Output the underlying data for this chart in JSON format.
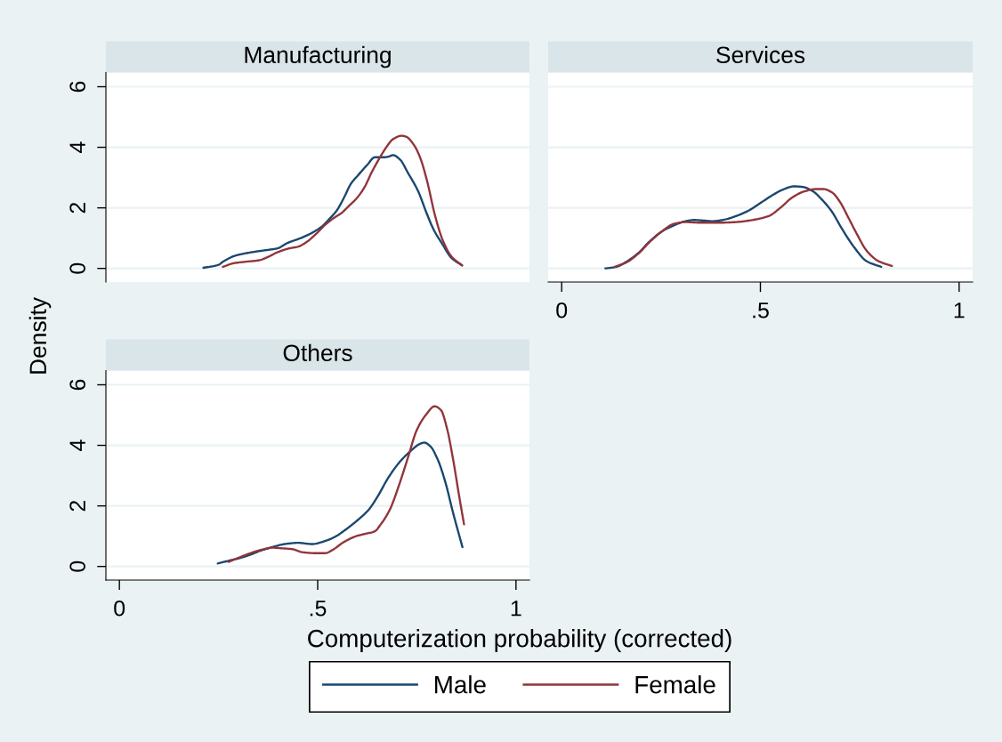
{
  "chart_data": [
    {
      "type": "line",
      "title": "Manufacturing",
      "ylabel": "Density",
      "legend": "bottom",
      "xlim": [
        -0.034,
        1.034
      ],
      "ylim": [
        -0.45,
        6.47
      ],
      "yticks": [
        0,
        2,
        4,
        6
      ],
      "grid": "y",
      "tick_labels": "y",
      "series": [
        {
          "name": "Male",
          "color": "#1a476f",
          "x": [
            0.212,
            0.25,
            0.261,
            0.292,
            0.311,
            0.341,
            0.368,
            0.398,
            0.424,
            0.455,
            0.485,
            0.511,
            0.53,
            0.549,
            0.568,
            0.583,
            0.602,
            0.625,
            0.644,
            0.667,
            0.678,
            0.69,
            0.708,
            0.727,
            0.754,
            0.773,
            0.792,
            0.815,
            0.837,
            0.864
          ],
          "values": [
            0.02,
            0.12,
            0.22,
            0.42,
            0.48,
            0.55,
            0.6,
            0.66,
            0.84,
            0.99,
            1.17,
            1.39,
            1.64,
            1.93,
            2.38,
            2.78,
            3.08,
            3.42,
            3.67,
            3.67,
            3.69,
            3.74,
            3.59,
            3.17,
            2.53,
            1.88,
            1.29,
            0.79,
            0.35,
            0.1
          ]
        },
        {
          "name": "Female",
          "color": "#90353b",
          "x": [
            0.261,
            0.288,
            0.318,
            0.352,
            0.375,
            0.398,
            0.428,
            0.451,
            0.474,
            0.496,
            0.519,
            0.538,
            0.561,
            0.58,
            0.598,
            0.618,
            0.636,
            0.655,
            0.674,
            0.69,
            0.712,
            0.723,
            0.743,
            0.758,
            0.776,
            0.795,
            0.815,
            0.837,
            0.864
          ],
          "values": [
            0.05,
            0.17,
            0.22,
            0.27,
            0.38,
            0.53,
            0.66,
            0.72,
            0.89,
            1.14,
            1.44,
            1.64,
            1.84,
            2.08,
            2.31,
            2.68,
            3.17,
            3.62,
            4.02,
            4.27,
            4.38,
            4.35,
            4.07,
            3.67,
            2.88,
            1.79,
            0.94,
            0.4,
            0.1
          ]
        }
      ]
    },
    {
      "type": "line",
      "title": "Services",
      "xlim": [
        -0.034,
        1.034
      ],
      "ylim": [
        -0.45,
        6.47
      ],
      "xticks": [
        0,
        {
          "value": 0.5,
          "label": ".5"
        },
        1
      ],
      "yticks": [
        0,
        2,
        4,
        6
      ],
      "grid": "y",
      "tick_labels": "x",
      "series": [
        {
          "color": "#1a476f",
          "x": [
            0.11,
            0.137,
            0.163,
            0.193,
            0.222,
            0.252,
            0.282,
            0.312,
            0.334,
            0.357,
            0.379,
            0.409,
            0.439,
            0.469,
            0.499,
            0.528,
            0.558,
            0.584,
            0.607,
            0.633,
            0.655,
            0.678,
            0.707,
            0.737,
            0.767,
            0.804
          ],
          "values": [
            0.0,
            0.05,
            0.22,
            0.51,
            0.9,
            1.22,
            1.42,
            1.56,
            1.6,
            1.58,
            1.56,
            1.61,
            1.73,
            1.9,
            2.15,
            2.4,
            2.61,
            2.71,
            2.69,
            2.54,
            2.27,
            1.91,
            1.27,
            0.68,
            0.24,
            0.05
          ]
        },
        {
          "color": "#90353b",
          "x": [
            0.133,
            0.163,
            0.193,
            0.222,
            0.252,
            0.282,
            0.312,
            0.349,
            0.394,
            0.439,
            0.476,
            0.521,
            0.551,
            0.581,
            0.61,
            0.64,
            0.659,
            0.681,
            0.7,
            0.722,
            0.745,
            0.767,
            0.797,
            0.831
          ],
          "values": [
            0.05,
            0.2,
            0.49,
            0.88,
            1.22,
            1.47,
            1.53,
            1.51,
            1.51,
            1.53,
            1.59,
            1.73,
            2.01,
            2.35,
            2.54,
            2.62,
            2.62,
            2.5,
            2.2,
            1.66,
            1.08,
            0.59,
            0.24,
            0.08
          ]
        }
      ]
    },
    {
      "type": "line",
      "title": "Others",
      "xlabel": "Computerization probability (corrected)",
      "xlim": [
        -0.034,
        1.034
      ],
      "ylim": [
        -0.45,
        6.47
      ],
      "xticks": [
        0,
        {
          "value": 0.5,
          "label": ".5"
        },
        1
      ],
      "yticks": [
        0,
        2,
        4,
        6
      ],
      "grid": "y",
      "series": [
        {
          "color": "#1a476f",
          "x": [
            0.248,
            0.273,
            0.318,
            0.356,
            0.386,
            0.417,
            0.451,
            0.485,
            0.523,
            0.545,
            0.576,
            0.606,
            0.629,
            0.652,
            0.678,
            0.708,
            0.735,
            0.758,
            0.769,
            0.784,
            0.803,
            0.822,
            0.841,
            0.865
          ],
          "values": [
            0.1,
            0.18,
            0.33,
            0.52,
            0.64,
            0.74,
            0.78,
            0.74,
            0.86,
            0.99,
            1.27,
            1.59,
            1.88,
            2.33,
            2.93,
            3.47,
            3.82,
            4.05,
            4.09,
            3.97,
            3.52,
            2.78,
            1.79,
            0.64
          ]
        },
        {
          "color": "#90353b",
          "x": [
            0.275,
            0.303,
            0.333,
            0.364,
            0.386,
            0.409,
            0.436,
            0.462,
            0.492,
            0.519,
            0.538,
            0.564,
            0.595,
            0.617,
            0.644,
            0.659,
            0.682,
            0.705,
            0.727,
            0.75,
            0.773,
            0.795,
            0.811,
            0.826,
            0.841,
            0.856,
            0.869
          ],
          "values": [
            0.15,
            0.3,
            0.45,
            0.57,
            0.62,
            0.6,
            0.57,
            0.47,
            0.44,
            0.44,
            0.55,
            0.79,
            0.99,
            1.07,
            1.16,
            1.39,
            1.88,
            2.68,
            3.57,
            4.51,
            5.01,
            5.29,
            5.16,
            4.56,
            3.57,
            2.38,
            1.39
          ]
        }
      ]
    }
  ]
}
